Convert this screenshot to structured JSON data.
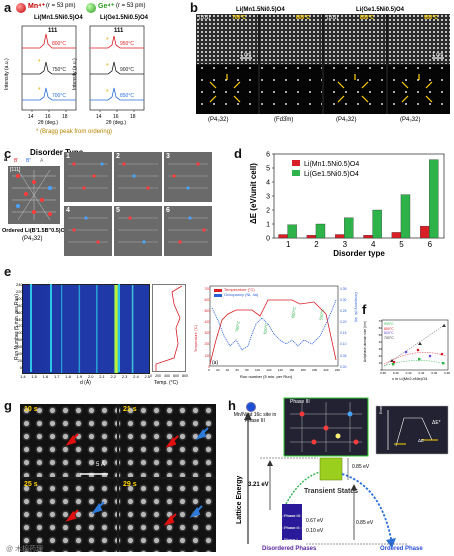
{
  "panels": {
    "a": {
      "letter": "a",
      "mn_ion": "Mn⁴⁺",
      "mn_radius": "(r = 53 pm)",
      "ge_ion": "Ge⁴⁺",
      "ge_radius": "(r = 53 pm)",
      "left_formula": "Li(Mn1.5Ni0.5)O4",
      "right_formula": "Li(Ge1.5Ni0.5)O4",
      "peak_label": "111",
      "left_temps": [
        "800°C",
        "750°C",
        "700°C"
      ],
      "right_temps": [
        "950°C",
        "900°C",
        "850°C"
      ],
      "ylabel": "Intensity (a.u.)",
      "xlabel": "2θ (deg.)",
      "x_ticks": [
        "14",
        "16",
        "18"
      ],
      "note": "* (Bragg peak from ordering)"
    },
    "b": {
      "letter": "b",
      "left_formula": "Li(Mn1.5Ni0.5)O4",
      "right_formula": "Li(Ge1.5Ni0.5)O4",
      "zone": "[101]",
      "temps": [
        "700°C",
        "800°C",
        "850°C",
        "950°C"
      ],
      "scale": "1 nm",
      "groups": [
        "(P4₃32)",
        "(Fd3̄m)",
        "(P4₃32)",
        "(P4₃32)"
      ]
    },
    "c": {
      "letter": "c",
      "title": "Disorder Type",
      "zone": "[111]",
      "sublabel": "a",
      "legend": [
        "B'",
        "B''",
        "A"
      ],
      "ordered_label": "Ordered Li(B'1.5B''0.5)O4",
      "ordered_group": "(P4₃32)",
      "types": [
        "1",
        "2",
        "3",
        "4",
        "5",
        "6"
      ]
    },
    "d": {
      "letter": "d"
    },
    "e": {
      "letter": "e",
      "ylabel": "Run Number (5 min. per Run)",
      "xlabel": "d (Å)",
      "y_ticks": [
        "240",
        "220",
        "200",
        "180",
        "160",
        "140",
        "120",
        "100",
        "80",
        "60",
        "40",
        "20",
        "0"
      ],
      "x_ticks": [
        "1.4",
        "1.5",
        "1.6",
        "1.7",
        "1.8",
        "1.9",
        "2.0",
        "2.1",
        "2.2",
        "2.3",
        "2.4",
        "2.5"
      ],
      "temp_label": "Temp. (°C)",
      "temp_ticks": [
        "0",
        "200",
        "400",
        "600",
        "800"
      ],
      "legend_temp": "Temperature (°C)",
      "legend_occ": "Occupancy (Ni, 4a)",
      "right_xlabel": "Run number (5 min. per Run)",
      "right_ylabel_left": "Temperature (°C)",
      "right_ylabel_right": "Occupancy (Ni, 4a)",
      "right_x_ticks": [
        "0",
        "20",
        "40",
        "60",
        "80",
        "100",
        "120",
        "140",
        "160",
        "180",
        "200",
        "220",
        "240"
      ],
      "right_yl_ticks": [
        "700",
        "600",
        "500",
        "400",
        "300",
        "200",
        "100",
        "0"
      ],
      "right_yr_ticks": [
        "0.35",
        "0.30",
        "0.25",
        "0.20",
        "0.15",
        "0.10",
        "0.05",
        "0.00"
      ],
      "annot_temps": [
        "700°C",
        "650°C",
        "600°C",
        "550°C"
      ],
      "sub": "(a)"
    },
    "f": {
      "letter": "f",
      "legend": [
        "900°C",
        "850°C",
        "800°C",
        "700°C"
      ],
      "ylabel": "Antiphase domain size (nm)",
      "xlabel": "x in Li(Mn2-xNix)O4",
      "x_ticks": [
        "0.38",
        "0.40",
        "0.42",
        "0.44",
        "0.46",
        "0.48"
      ],
      "y_ticks": [
        "0",
        "10",
        "20",
        "30",
        "40",
        "50",
        "60",
        "70"
      ]
    },
    "g": {
      "letter": "g",
      "times": [
        "10 s",
        "21 s",
        "25 s",
        "29 s"
      ],
      "scale": "5 Å"
    },
    "h": {
      "letter": "h",
      "caption": "Mn/Ni at 16c site in Phase III",
      "phase3_inset": "Phase III",
      "ylabel": "Lattice Energy",
      "e1": "3.21 eV",
      "e2": "0.85 eV",
      "e3": "0.67 eV",
      "e4": "0.10 eV",
      "e5": "0.85 eV",
      "transient": "Transient States",
      "phases": [
        "Phase III",
        "Phase II",
        "Phase I"
      ],
      "disordered": "Disordered Phases",
      "ordered": "Ordered Phase",
      "inset_energy": "Energy",
      "inset_de_star": "ΔE*",
      "inset_de": "ΔE"
    }
  },
  "watermark": "@ 木棉药理",
  "colors": {
    "red": "#d81f26",
    "green": "#2db34a",
    "blue": "#2b6fd6",
    "purple": "#5b2aa0"
  },
  "chart_data": [
    {
      "type": "bar",
      "panel": "d",
      "categories": [
        "1",
        "2",
        "3",
        "4",
        "5",
        "6"
      ],
      "series": [
        {
          "name": "Li(Mn1.5Ni0.5)O4",
          "values": [
            0.25,
            0.2,
            0.25,
            0.2,
            0.4,
            0.85
          ]
        },
        {
          "name": "Li(Ge1.5Ni0.5)O4",
          "values": [
            0.95,
            1.0,
            1.45,
            2.0,
            3.1,
            5.6
          ]
        }
      ],
      "ylabel": "ΔE (eV/unit cell)",
      "xlabel": "Disorder type",
      "ylim": [
        0,
        6
      ],
      "y_ticks": [
        "0",
        "1",
        "2",
        "3",
        "4",
        "5",
        "6"
      ]
    }
  ]
}
